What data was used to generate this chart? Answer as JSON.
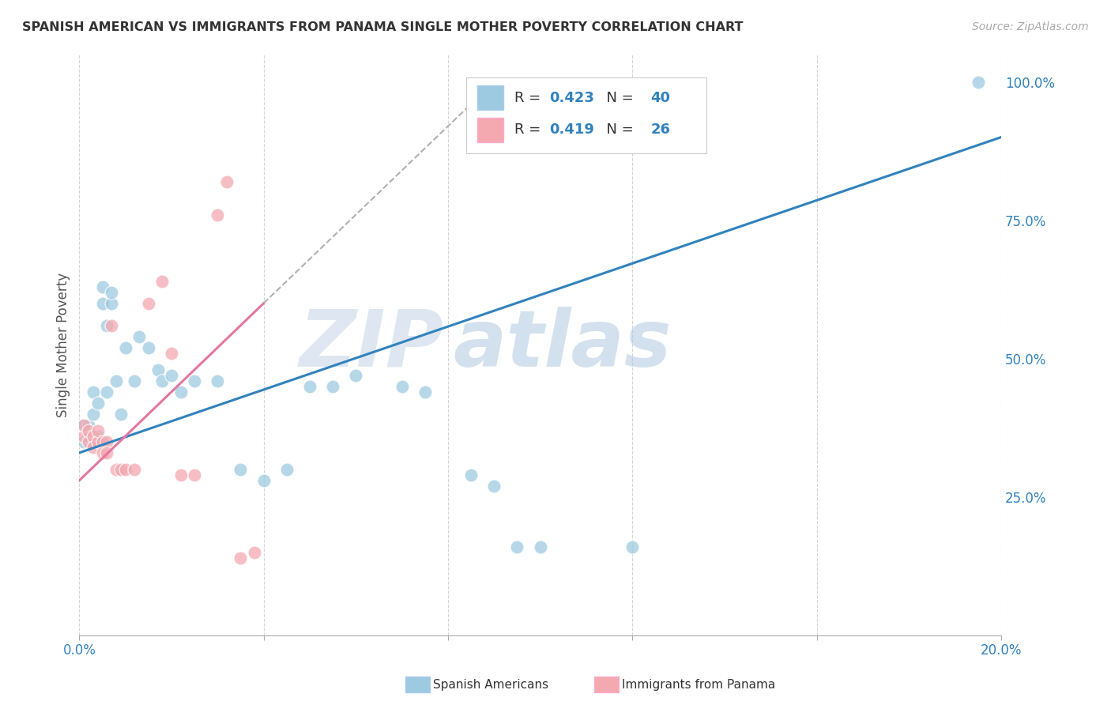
{
  "title": "SPANISH AMERICAN VS IMMIGRANTS FROM PANAMA SINGLE MOTHER POVERTY CORRELATION CHART",
  "source": "Source: ZipAtlas.com",
  "ylabel": "Single Mother Poverty",
  "xlim": [
    0.0,
    0.2
  ],
  "ylim": [
    0.0,
    1.05
  ],
  "yticks_right": [
    0.25,
    0.5,
    0.75,
    1.0
  ],
  "ytick_right_labels": [
    "25.0%",
    "50.0%",
    "75.0%",
    "100.0%"
  ],
  "blue_R": 0.423,
  "blue_N": 40,
  "pink_R": 0.419,
  "pink_N": 26,
  "blue_color": "#9ecae1",
  "pink_color": "#f4a8b0",
  "blue_line_color": "#3182bd",
  "pink_line_color": "#e377a0",
  "grid_color": "#d0d0d0",
  "background_color": "#ffffff",
  "blue_x": [
    0.001,
    0.001,
    0.002,
    0.002,
    0.003,
    0.003,
    0.004,
    0.004,
    0.005,
    0.005,
    0.006,
    0.006,
    0.007,
    0.007,
    0.008,
    0.009,
    0.01,
    0.012,
    0.013,
    0.015,
    0.017,
    0.018,
    0.02,
    0.022,
    0.025,
    0.03,
    0.035,
    0.04,
    0.045,
    0.05,
    0.055,
    0.06,
    0.07,
    0.075,
    0.085,
    0.09,
    0.095,
    0.1,
    0.12,
    0.195
  ],
  "blue_y": [
    0.35,
    0.38,
    0.38,
    0.36,
    0.4,
    0.44,
    0.42,
    0.36,
    0.6,
    0.63,
    0.56,
    0.44,
    0.6,
    0.62,
    0.46,
    0.4,
    0.52,
    0.46,
    0.54,
    0.52,
    0.48,
    0.46,
    0.47,
    0.44,
    0.46,
    0.46,
    0.3,
    0.28,
    0.3,
    0.45,
    0.45,
    0.47,
    0.45,
    0.44,
    0.29,
    0.27,
    0.16,
    0.16,
    0.16,
    1.0
  ],
  "pink_x": [
    0.001,
    0.001,
    0.002,
    0.002,
    0.003,
    0.003,
    0.004,
    0.004,
    0.005,
    0.005,
    0.006,
    0.006,
    0.007,
    0.008,
    0.009,
    0.01,
    0.012,
    0.015,
    0.018,
    0.02,
    0.022,
    0.025,
    0.03,
    0.032,
    0.035,
    0.038
  ],
  "pink_y": [
    0.36,
    0.38,
    0.35,
    0.37,
    0.36,
    0.34,
    0.35,
    0.37,
    0.35,
    0.33,
    0.35,
    0.33,
    0.56,
    0.3,
    0.3,
    0.3,
    0.3,
    0.6,
    0.64,
    0.51,
    0.29,
    0.29,
    0.76,
    0.82,
    0.14,
    0.15
  ],
  "blue_trend_x0": 0.0,
  "blue_trend_y0": 0.33,
  "blue_trend_x1": 0.2,
  "blue_trend_y1": 0.9,
  "pink_trend_x0": 0.0,
  "pink_trend_y0": 0.28,
  "pink_trend_x1": 0.055,
  "pink_trend_y1": 0.72
}
